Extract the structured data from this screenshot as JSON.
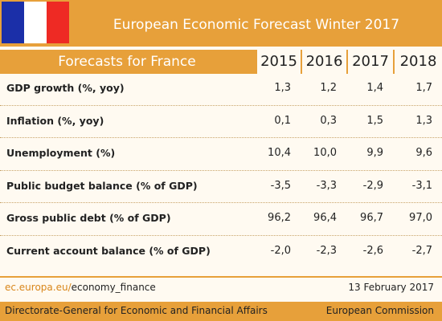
{
  "header": {
    "title": "European Economic Forecast Winter 2017"
  },
  "table": {
    "title": "Forecasts for France",
    "columns": [
      "2015",
      "2016",
      "2017",
      "2018"
    ],
    "rows": [
      [
        "GDP growth (%, yoy)",
        "1,3",
        "1,2",
        "1,4",
        "1,7"
      ],
      [
        "Inflation (%, yoy)",
        "0,1",
        "0,3",
        "1,5",
        "1,3"
      ],
      [
        "Unemployment (%)",
        "10,4",
        "10,0",
        "9,9",
        "9,6"
      ],
      [
        "Public budget balance (% of GDP)",
        "-3,5",
        "-3,3",
        "-2,9",
        "-3,1"
      ],
      [
        "Gross public debt (% of GDP)",
        "96,2",
        "96,4",
        "96,7",
        "97,0"
      ],
      [
        "Current account balance (% of GDP)",
        "-2,0",
        "-2,3",
        "-2,6",
        "-2,7"
      ]
    ]
  },
  "footer": {
    "url_domain": "ec.europa.eu/",
    "url_path": "economy_finance",
    "date": "13 February 2017",
    "department": "Directorate-General for Economic and Financial Affairs",
    "organization": "European Commission"
  }
}
